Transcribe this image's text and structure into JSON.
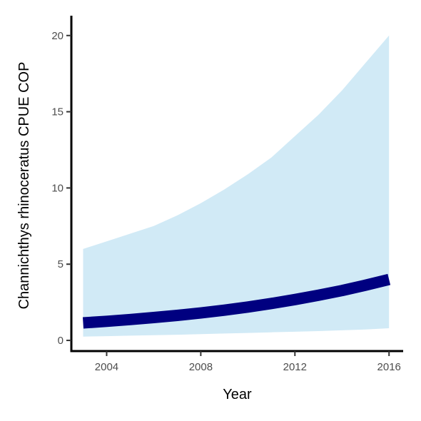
{
  "chart_data": {
    "type": "line",
    "title": "",
    "xlabel": "Year",
    "ylabel": "Channichthys rhinoceratus  CPUE COP",
    "xlim": [
      2002.5,
      2016.6
    ],
    "ylim": [
      -0.7,
      21.3
    ],
    "x_ticks": [
      2004,
      2008,
      2012,
      2016
    ],
    "y_ticks": [
      0,
      5,
      10,
      15,
      20
    ],
    "grid": false,
    "legend": "none",
    "colors": {
      "line": "#000080",
      "band": "#d1eaf6",
      "axis": "#000000",
      "tick_label": "#4d4d4d"
    },
    "series": [
      {
        "x": [
          2003,
          2004,
          2005,
          2006,
          2007,
          2008,
          2009,
          2010,
          2011,
          2012,
          2013,
          2014,
          2015,
          2016
        ],
        "y": [
          1.15,
          1.25,
          1.37,
          1.5,
          1.64,
          1.8,
          1.98,
          2.19,
          2.42,
          2.68,
          2.96,
          3.27,
          3.62,
          4.0
        ],
        "lower": [
          0.25,
          0.28,
          0.31,
          0.34,
          0.37,
          0.41,
          0.45,
          0.49,
          0.53,
          0.57,
          0.61,
          0.66,
          0.72,
          0.8
        ],
        "upper": [
          6.0,
          6.5,
          7.0,
          7.5,
          8.2,
          9.0,
          9.9,
          10.9,
          12.0,
          13.4,
          14.8,
          16.4,
          18.2,
          20.0
        ]
      }
    ]
  }
}
